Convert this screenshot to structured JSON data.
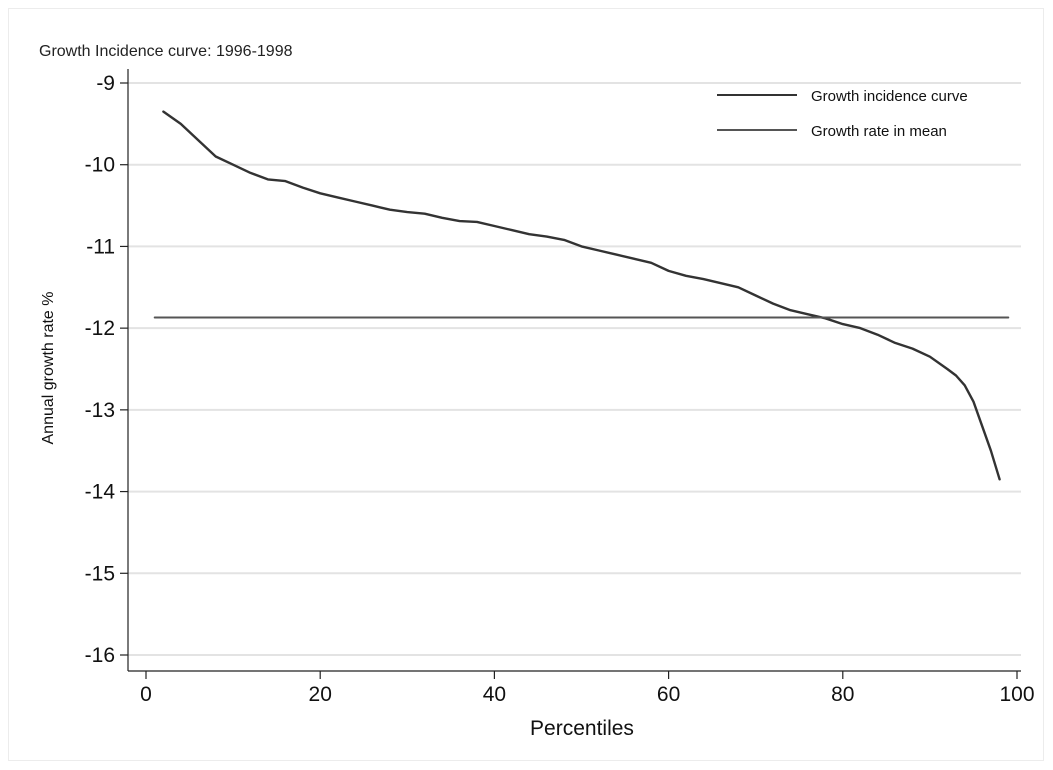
{
  "chart_data": {
    "type": "line",
    "title": "Growth Incidence curve: 1996-1998",
    "xlabel": "Percentiles",
    "ylabel": "Annual growth rate %",
    "xlim": [
      0,
      100
    ],
    "ylim": [
      -16,
      -9
    ],
    "xticks": [
      0,
      20,
      40,
      60,
      80,
      100
    ],
    "yticks": [
      -9,
      -10,
      -11,
      -12,
      -13,
      -14,
      -15,
      -16
    ],
    "grid": true,
    "legend_position": "top-right",
    "colors": {
      "curve": "#333333",
      "mean": "#555555",
      "grid": "#e3e3e3",
      "axis": "#222222"
    },
    "series": [
      {
        "name": "Growth incidence curve",
        "style": "curve",
        "x": [
          2,
          4,
          6,
          8,
          10,
          12,
          14,
          16,
          18,
          20,
          22,
          24,
          26,
          28,
          30,
          32,
          34,
          36,
          38,
          40,
          42,
          44,
          46,
          48,
          50,
          52,
          54,
          56,
          58,
          60,
          62,
          64,
          66,
          68,
          70,
          72,
          74,
          76,
          78,
          80,
          82,
          84,
          86,
          88,
          90,
          92,
          93,
          94,
          95,
          96,
          97,
          98
        ],
        "y": [
          -9.35,
          -9.5,
          -9.7,
          -9.9,
          -10.0,
          -10.1,
          -10.18,
          -10.2,
          -10.28,
          -10.35,
          -10.4,
          -10.45,
          -10.5,
          -10.55,
          -10.58,
          -10.6,
          -10.65,
          -10.69,
          -10.7,
          -10.75,
          -10.8,
          -10.85,
          -10.88,
          -10.92,
          -11.0,
          -11.05,
          -11.1,
          -11.15,
          -11.2,
          -11.3,
          -11.36,
          -11.4,
          -11.45,
          -11.5,
          -11.6,
          -11.7,
          -11.78,
          -11.83,
          -11.88,
          -11.95,
          -12.0,
          -12.08,
          -12.18,
          -12.25,
          -12.35,
          -12.5,
          -12.58,
          -12.7,
          -12.9,
          -13.2,
          -13.5,
          -13.85
        ]
      },
      {
        "name": "Growth rate in mean",
        "style": "mean",
        "x": [
          1,
          99
        ],
        "y": [
          -11.87,
          -11.87
        ]
      }
    ]
  }
}
